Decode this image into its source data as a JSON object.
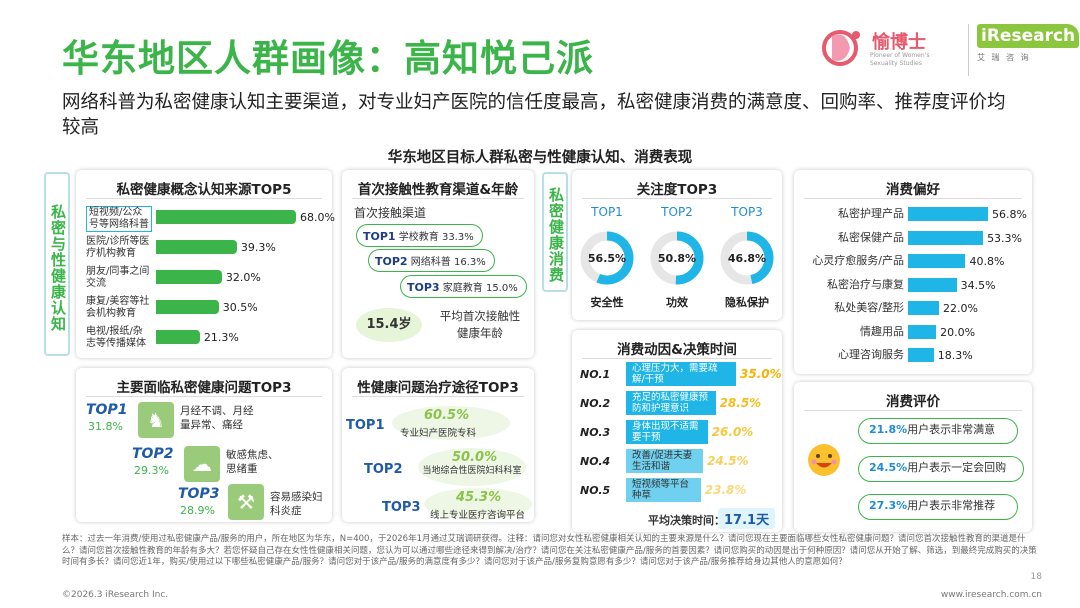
{
  "header": {
    "title": "华东地区人群画像：高知悦己派",
    "subtitle": "网络科普为私密健康认知主要渠道，对专业妇产医院的信任度最高，私密健康消费的满意度、回购率、推荐度评价均较高",
    "center_title": "华东地区目标人群私密与性健康认知、消费表现"
  },
  "logo": {
    "brand_cn": "愉博士",
    "brand_en": "iResearch",
    "brand_en_sub": "艾 瑞 咨 询",
    "brand_tag": "Pioneer of Women's Sexuality Studies"
  },
  "side_labels": {
    "left": "私密与性健康认知",
    "middle": "私密健康消费"
  },
  "colors": {
    "green": "#3bb54a",
    "blue": "#1fb5e6",
    "navy": "#1f5aa8",
    "orange": "#f7b500"
  },
  "panels": {
    "cognition_source": {
      "title": "私密健康概念认知来源TOP5",
      "items": [
        {
          "label": "短视频/公众号等网络科普",
          "value": "68.0%"
        },
        {
          "label": "医院/诊所等医疗机构教育",
          "value": "39.3%"
        },
        {
          "label": "朋友/同事之间交流",
          "value": "32.0%"
        },
        {
          "label": "康复/美容等社会机构教育",
          "value": "30.5%"
        },
        {
          "label": "电视/报纸/杂志等传播媒体",
          "value": "21.3%"
        }
      ]
    },
    "first_contact": {
      "title": "首次接触性教育渠道&年龄",
      "channel_title": "首次接触渠道",
      "items": [
        {
          "rank": "TOP1",
          "label": "学校教育",
          "value": "33.3%"
        },
        {
          "rank": "TOP2",
          "label": "网络科普",
          "value": "16.3%"
        },
        {
          "rank": "TOP3",
          "label": "家庭教育",
          "value": "15.0%"
        }
      ],
      "age": "15.4岁",
      "age_label": "平均首次接触性健康年龄"
    },
    "attention": {
      "title": "关注度TOP3",
      "items": [
        {
          "rank": "TOP1",
          "value": "56.5%",
          "name": "安全性"
        },
        {
          "rank": "TOP2",
          "value": "50.8%",
          "name": "功效"
        },
        {
          "rank": "TOP3",
          "value": "46.8%",
          "name": "隐私保护"
        }
      ]
    },
    "preference": {
      "title": "消费偏好",
      "items": [
        {
          "label": "私密护理产品",
          "value": "56.8%"
        },
        {
          "label": "私密保健产品",
          "value": "53.3%"
        },
        {
          "label": "心灵疗愈服务/产品",
          "value": "40.8%"
        },
        {
          "label": "私密治疗与康复",
          "value": "34.5%"
        },
        {
          "label": "私处美容/整形",
          "value": "22.0%"
        },
        {
          "label": "情趣用品",
          "value": "20.0%"
        },
        {
          "label": "心理咨询服务",
          "value": "18.3%"
        }
      ]
    },
    "problems": {
      "title": "主要面临私密健康问题TOP3",
      "items": [
        {
          "rank": "TOP1",
          "value": "31.8%",
          "desc": "月经不调、月经量异常、痛经"
        },
        {
          "rank": "TOP2",
          "value": "29.3%",
          "desc": "敏感焦虑、思绪重"
        },
        {
          "rank": "TOP3",
          "value": "28.9%",
          "desc": "容易感染妇科炎症"
        }
      ]
    },
    "treatment": {
      "title": "性健康问题治疗途径TOP3",
      "items": [
        {
          "rank": "TOP1",
          "value": "60.5%",
          "desc": "专业妇产医院专科"
        },
        {
          "rank": "TOP2",
          "value": "50.0%",
          "desc": "当地综合性医院妇科科室"
        },
        {
          "rank": "TOP3",
          "value": "45.3%",
          "desc": "线上专业医疗咨询平台"
        }
      ]
    },
    "motivation": {
      "title": "消费动因&决策时间",
      "items": [
        {
          "rank": "NO.1",
          "label": "心理压力大，需要疏解/干预",
          "value": "35.0%"
        },
        {
          "rank": "NO.2",
          "label": "充足的私密健康预防和护理意识",
          "value": "28.5%"
        },
        {
          "rank": "NO.3",
          "label": "身体出现不适需要干预",
          "value": "26.0%"
        },
        {
          "rank": "NO.4",
          "label": "改善/促进夫妻生活和谐",
          "value": "24.5%"
        },
        {
          "rank": "NO.5",
          "label": "短视频等平台种草",
          "value": "23.8%"
        }
      ],
      "decision_label": "平均决策时间：",
      "decision_value": "17.1天"
    },
    "evaluation": {
      "title": "消费评价",
      "items": [
        {
          "value": "21.8%",
          "text": "用户表示非常满意"
        },
        {
          "value": "24.5%",
          "text": "用户表示一定会回购"
        },
        {
          "value": "27.3%",
          "text": "用户表示非常推荐"
        }
      ]
    }
  },
  "chart_data": [
    {
      "type": "bar",
      "title": "私密健康概念认知来源TOP5",
      "categories": [
        "短视频/公众号等网络科普",
        "医院/诊所等医疗机构教育",
        "朋友/同事之间交流",
        "康复/美容等社会机构教育",
        "电视/报纸/杂志等传播媒体"
      ],
      "values": [
        68.0,
        39.3,
        32.0,
        30.5,
        21.3
      ],
      "unit": "%"
    },
    {
      "type": "pie",
      "title": "关注度TOP3",
      "categories": [
        "安全性",
        "功效",
        "隐私保护"
      ],
      "values": [
        56.5,
        50.8,
        46.8
      ],
      "unit": "%"
    },
    {
      "type": "bar",
      "title": "消费偏好",
      "categories": [
        "私密护理产品",
        "私密保健产品",
        "心灵疗愈服务/产品",
        "私密治疗与康复",
        "私处美容/整形",
        "情趣用品",
        "心理咨询服务"
      ],
      "values": [
        56.8,
        53.3,
        40.8,
        34.5,
        22.0,
        20.0,
        18.3
      ],
      "unit": "%"
    },
    {
      "type": "bar",
      "title": "消费动因&决策时间",
      "categories": [
        "心理压力大，需要疏解/干预",
        "充足的私密健康预防和护理意识",
        "身体出现不适需要干预",
        "改善/促进夫妻生活和谐",
        "短视频等平台种草"
      ],
      "values": [
        35.0,
        28.5,
        26.0,
        24.5,
        23.8
      ],
      "unit": "%"
    }
  ],
  "footnote": "样本：过去一年消费/使用过私密健康产品/服务的用户，所在地区为华东，N=400，于2026年1月通过艾瑞调研获得。注释：请问您对女性私密健康相关认知的主要来源是什么？请问您现在主要面临哪些女性私密健康问题？请问您首次接触性教育的渠道是什么？请问您首次接触性教育的年龄有多大？若您怀疑自己存在女性性健康相关问题，您认为可以通过哪些途径来得到解决/治疗？请问您在关注私密健康产品/服务的首要因素？请问您购买的动因是出于何种原因？请问您从开始了解、筛选，到最终完成购买的决策时间有多长？请问您近1年，购买/使用过以下哪些私密健康产品/服务？请问您对于该产品/服务的满意度有多少？请问您对于该产品/服务复购意愿有多少？请问您对于该产品/服务推荐给身边其他人的意愿如何？",
  "footer": {
    "copyright": "©2026.3 iResearch Inc.",
    "url": "www.iresearch.com.cn",
    "page": "18"
  }
}
